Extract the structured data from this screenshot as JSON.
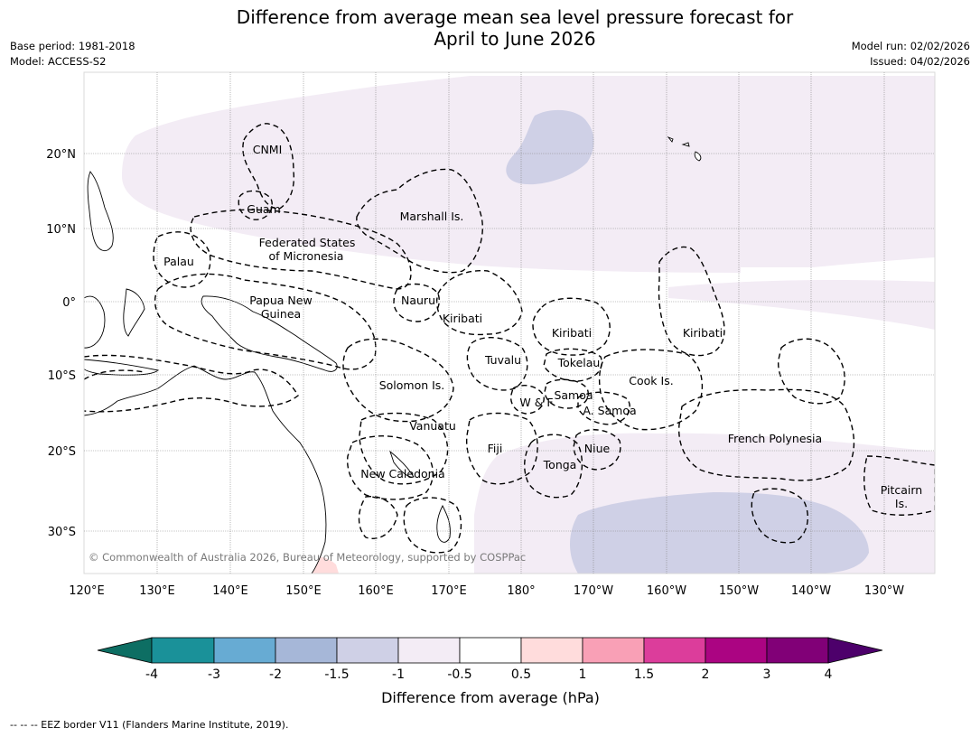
{
  "title_line1": "Difference from average mean sea level pressure forecast for",
  "title_line2": "April to June 2026",
  "base_period": "Base period: 1981-2018",
  "model": "Model: ACCESS-S2",
  "model_run": "Model run: 02/02/2026",
  "issued": "Issued: 04/02/2026",
  "lat_ticks": [
    "20°N",
    "10°N",
    "0°",
    "10°S",
    "20°S",
    "30°S"
  ],
  "lon_ticks": [
    "120°E",
    "130°E",
    "140°E",
    "150°E",
    "160°E",
    "170°E",
    "180°",
    "170°W",
    "160°W",
    "150°W",
    "140°W",
    "130°W"
  ],
  "region_labels": {
    "cnmi": "CNMI",
    "guam": "Guam",
    "marshall": "Marshall Is.",
    "fsm1": "Federated States",
    "fsm2": "of Micronesia",
    "palau": "Palau",
    "png1": "Papua New",
    "png2": "Guinea",
    "nauru": "Nauru",
    "kiribati1": "Kiribati",
    "kiribati2": "Kiribati",
    "kiribati3": "Kiribati",
    "tuvalu": "Tuvalu",
    "tokelau": "Tokelau",
    "cook": "Cook Is.",
    "solomon": "Solomon Is.",
    "samoa": "Samoa",
    "wf": "W & F",
    "asamoa": "A. Samoa",
    "vanuatu": "Vanuatu",
    "fiji": "Fiji",
    "niue": "Niue",
    "tonga": "Tonga",
    "frpoly": "French Polynesia",
    "newcal": "New Caledonia",
    "pitcairn1": "Pitcairn",
    "pitcairn2": "Is."
  },
  "copyright": "© Commonwealth of Australia 2026, Bureau of Meteorology, supported by COSPPac",
  "colorbar": {
    "ticks": [
      "-4",
      "-3",
      "-2",
      "-1.5",
      "-1",
      "-0.5",
      "0.5",
      "1",
      "1.5",
      "2",
      "3",
      "4"
    ],
    "colors": [
      "#0d6e63",
      "#1a9199",
      "#67abd3",
      "#a6b7d8",
      "#cfd0e6",
      "#f3ecf5",
      "#ffffff",
      "#ffdcdc",
      "#f9a0b6",
      "#dc3d9b",
      "#ab0482",
      "#810077",
      "#4d006b"
    ],
    "label": "Difference from average (hPa)"
  },
  "footer": "--  --  -- EEZ border V11 (Flanders Marine Institute, 2019)."
}
